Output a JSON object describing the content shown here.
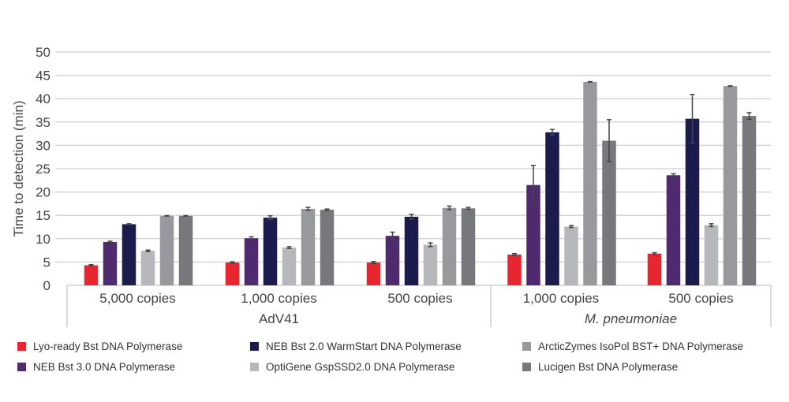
{
  "chart_data": {
    "type": "bar",
    "title": "",
    "ylabel": "Time to detection (min)",
    "xlabel": "",
    "ylim": [
      0,
      50
    ],
    "yticks": [
      0,
      5,
      10,
      15,
      20,
      25,
      30,
      35,
      40,
      45,
      50
    ],
    "grid": true,
    "legend_placement": "bottom",
    "categories": [
      "5,000 copies",
      "1,000 copies",
      "500 copies",
      "1,000 copies",
      "500 copies"
    ],
    "groups": [
      {
        "label": "AdV41",
        "italic": false,
        "categories": [
          0,
          1,
          2
        ]
      },
      {
        "label": "M. pneumoniae",
        "italic": true,
        "categories": [
          3,
          4
        ]
      }
    ],
    "series": [
      {
        "name": "Lyo-ready Bst DNA Polymerase",
        "color": "#e8262f",
        "values": [
          4.3,
          4.9,
          4.9,
          6.6,
          6.8
        ],
        "errors": [
          0.15,
          0.15,
          0.2,
          0.2,
          0.2
        ]
      },
      {
        "name": "NEB Bst 3.0 DNA Polymerase",
        "color": "#4f2a6e",
        "values": [
          9.3,
          10.1,
          10.6,
          21.5,
          23.6
        ],
        "errors": [
          0.15,
          0.3,
          0.8,
          4.2,
          0.3
        ]
      },
      {
        "name": "NEB Bst 2.0 WarmStart DNA Polymerase",
        "color": "#1b1c4d",
        "values": [
          13.1,
          14.5,
          14.7,
          32.8,
          35.7
        ],
        "errors": [
          0.1,
          0.4,
          0.5,
          0.6,
          5.2
        ]
      },
      {
        "name": "OptiGene GspSSD2.0 DNA Polymerase",
        "color": "#b7b8bb",
        "values": [
          7.4,
          8.1,
          8.7,
          12.6,
          12.9
        ],
        "errors": [
          0.15,
          0.2,
          0.4,
          0.2,
          0.3
        ]
      },
      {
        "name": "ArcticZymes IsoPol BST+ DNA Polymerase",
        "color": "#98999c",
        "values": [
          14.9,
          16.4,
          16.6,
          43.6,
          42.7
        ],
        "errors": [
          0.05,
          0.3,
          0.4,
          0.05,
          0.05
        ]
      },
      {
        "name": "Lucigen Bst DNA Polymerase",
        "color": "#77787b",
        "values": [
          14.9,
          16.2,
          16.5,
          31.0,
          36.3
        ],
        "errors": [
          0.05,
          0.15,
          0.2,
          4.5,
          0.7
        ]
      }
    ]
  }
}
